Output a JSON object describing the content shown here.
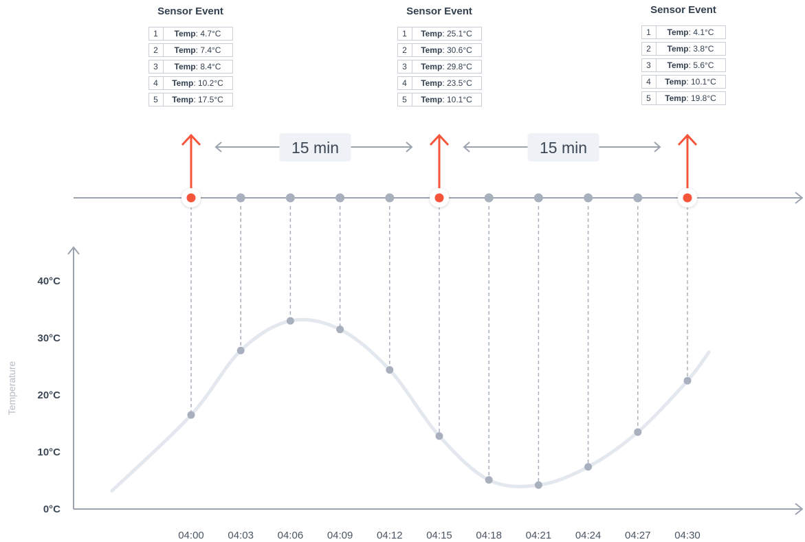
{
  "events": [
    {
      "title": "Sensor Event",
      "readings": [
        {
          "index": "1",
          "label": "Temp",
          "value": "4.7°C"
        },
        {
          "index": "2",
          "label": "Temp",
          "value": "7.4°C"
        },
        {
          "index": "3",
          "label": "Temp",
          "value": "8.4°C"
        },
        {
          "index": "4",
          "label": "Temp",
          "value": "10.2°C"
        },
        {
          "index": "5",
          "label": "Temp",
          "value": "17.5°C"
        }
      ]
    },
    {
      "title": "Sensor Event",
      "readings": [
        {
          "index": "1",
          "label": "Temp",
          "value": "25.1°C"
        },
        {
          "index": "2",
          "label": "Temp",
          "value": "30.6°C"
        },
        {
          "index": "3",
          "label": "Temp",
          "value": "29.8°C"
        },
        {
          "index": "4",
          "label": "Temp",
          "value": "23.5°C"
        },
        {
          "index": "5",
          "label": "Temp",
          "value": "10.1°C"
        }
      ]
    },
    {
      "title": "Sensor Event",
      "readings": [
        {
          "index": "1",
          "label": "Temp",
          "value": "4.1°C"
        },
        {
          "index": "2",
          "label": "Temp",
          "value": "3.8°C"
        },
        {
          "index": "3",
          "label": "Temp",
          "value": "5.6°C"
        },
        {
          "index": "4",
          "label": "Temp",
          "value": "10.1°C"
        },
        {
          "index": "5",
          "label": "Temp",
          "value": "19.8°C"
        }
      ]
    }
  ],
  "intervals": [
    "15 min",
    "15 min"
  ],
  "chart_data": {
    "type": "line",
    "ylabel": "Temperature",
    "ylim": [
      0,
      45
    ],
    "y_ticks": [
      "0°C",
      "10°C",
      "20°C",
      "30°C",
      "40°C"
    ],
    "x": [
      "04:00",
      "04:03",
      "04:06",
      "04:09",
      "04:12",
      "04:15",
      "04:18",
      "04:21",
      "04:24",
      "04:27",
      "04:30"
    ],
    "samples": [
      16.5,
      27.8,
      33,
      31.5,
      24.4,
      12.8,
      5.1,
      4.2,
      7.4,
      13.5,
      22.5
    ],
    "event_times": [
      "04:00",
      "04:15",
      "04:30"
    ],
    "colors": {
      "event": "#f4553b",
      "sample": "#a8b0bd",
      "axis": "#9aa3ae",
      "curve": "#e3e8ef"
    }
  }
}
